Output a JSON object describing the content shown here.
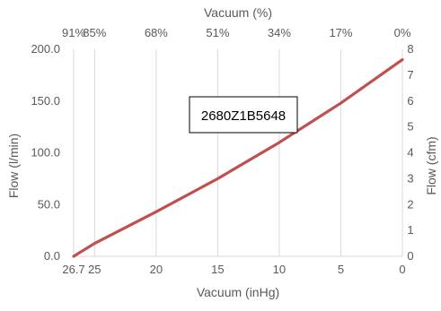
{
  "chart_data": {
    "type": "line",
    "annotation": "2680Z1B5648",
    "x_bottom": {
      "title": "Vacuum (inHg)",
      "range": [
        26.7,
        0
      ],
      "ticks": [
        26.7,
        25,
        20,
        15,
        10,
        5,
        0
      ],
      "tick_labels": [
        "26.7",
        "25",
        "20",
        "15",
        "10",
        "5",
        "0"
      ]
    },
    "x_top": {
      "title": "Vacuum (%)",
      "tick_labels": [
        "91%",
        "85%",
        "68%",
        "51%",
        "34%",
        "17%",
        "0%"
      ]
    },
    "y_left": {
      "title": "Flow (l/min)",
      "range": [
        0,
        200
      ],
      "ticks": [
        0,
        50,
        100,
        150,
        200
      ],
      "tick_labels": [
        "0.0",
        "50.0",
        "100.0",
        "150.0",
        "200.0"
      ]
    },
    "y_right": {
      "title": "Flow (cfm)",
      "range": [
        0,
        8
      ],
      "ticks": [
        0,
        1,
        2,
        3,
        4,
        5,
        6,
        7,
        8
      ],
      "tick_labels": [
        "0",
        "1",
        "2",
        "3",
        "4",
        "5",
        "6",
        "7",
        "8"
      ]
    },
    "grid": "vertical",
    "series": [
      {
        "color": "#c0504d",
        "x": [
          26.7,
          25,
          20,
          15,
          10,
          5,
          0
        ],
        "y": [
          0,
          12.5,
          43,
          75,
          110,
          148,
          190
        ]
      }
    ]
  }
}
